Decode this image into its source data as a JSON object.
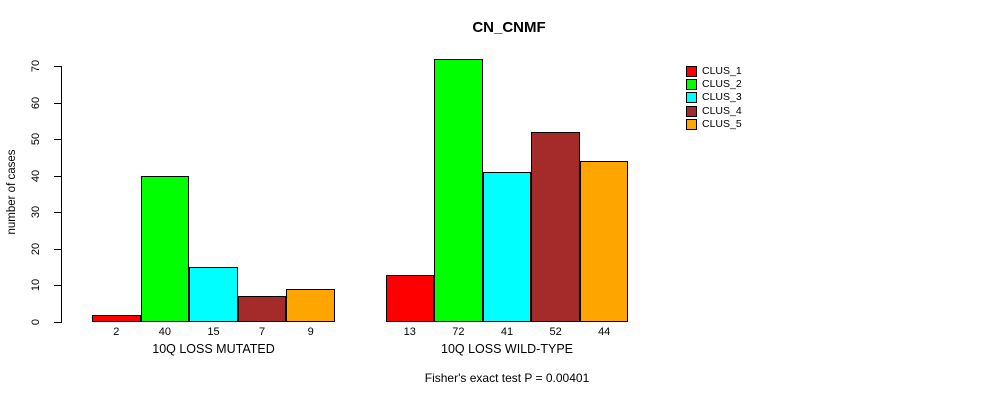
{
  "chart_data": {
    "type": "bar",
    "title": "CN_CNMF",
    "ylabel": "number of cases",
    "xlabel": "",
    "note": "Fisher's exact test P = 0.00401",
    "categories": [
      "10Q LOSS MUTATED",
      "10Q LOSS WILD-TYPE"
    ],
    "series": [
      {
        "name": "CLUS_1",
        "color": "#FF0000",
        "values": [
          2,
          13
        ]
      },
      {
        "name": "CLUS_2",
        "color": "#00FF00",
        "values": [
          40,
          72
        ]
      },
      {
        "name": "CLUS_3",
        "color": "#00FFFF",
        "values": [
          15,
          41
        ]
      },
      {
        "name": "CLUS_4",
        "color": "#A52A2A",
        "values": [
          7,
          52
        ]
      },
      {
        "name": "CLUS_5",
        "color": "#FFA500",
        "values": [
          9,
          44
        ]
      }
    ],
    "y_ticks": [
      0,
      10,
      20,
      30,
      40,
      50,
      60,
      70
    ],
    "ylim": [
      0,
      70
    ],
    "bar_value_labels_shown": true,
    "legend_position": "right",
    "grid": false,
    "bar_border_color": "#000000",
    "background_color": "#FFFFFF"
  }
}
